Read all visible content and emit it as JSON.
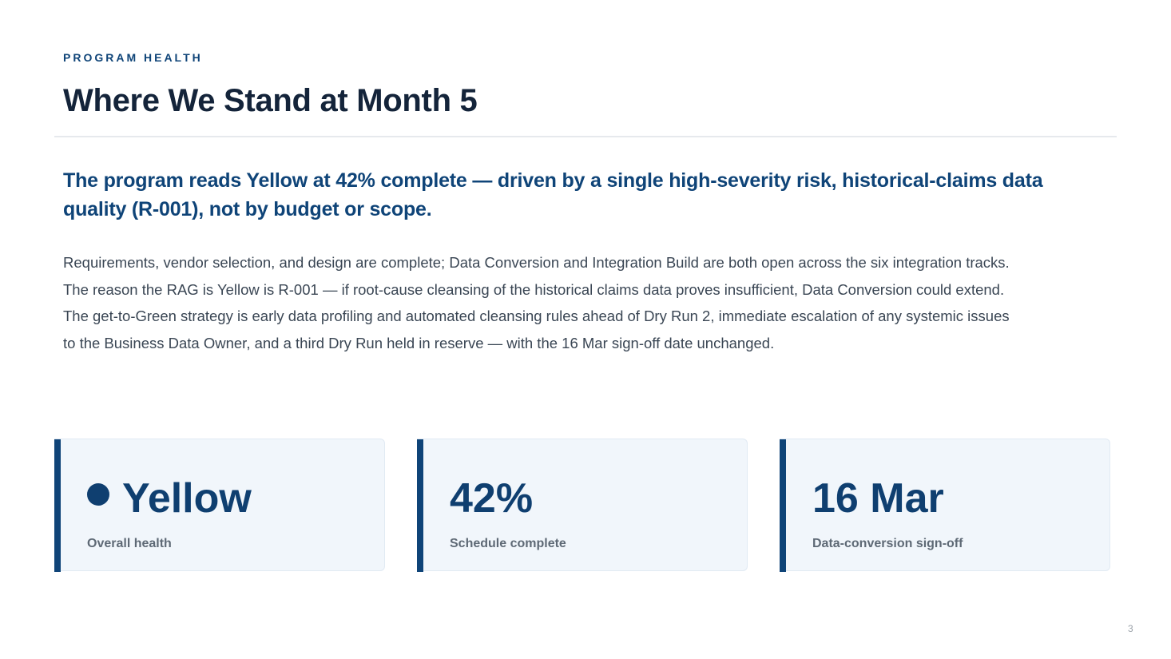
{
  "slide": {
    "eyebrow": "PROGRAM HEALTH",
    "title": "Where We Stand at Month 5",
    "headline": "The program reads Yellow at 42% complete — driven by a single high-severity risk, historical-claims data quality (R-001), not by budget or scope.",
    "body_lines": [
      "Requirements, vendor selection, and design are complete; Data Conversion and Integration Build are both open across the six integration tracks.",
      "The reason the RAG is Yellow is R-001 — if root-cause cleansing of the historical claims data proves insufficient, Data Conversion could extend.",
      "The get-to-Green strategy is early data profiling and automated cleansing rules ahead of Dry Run 2, immediate escalation of any systemic issues",
      "to the Business Data Owner, and a third Dry Run held in reserve — with the 16 Mar sign-off date unchanged."
    ],
    "page_number": "3"
  },
  "cards": [
    {
      "value": "Yellow",
      "label": "Overall health",
      "icon": "status-dot-icon"
    },
    {
      "value": "42%",
      "label": "Schedule complete"
    },
    {
      "value": "16 Mar",
      "label": "Data-conversion sign-off"
    }
  ],
  "colors": {
    "accent": "#0f4478",
    "title": "#14243a",
    "card_bg": "#f1f6fb",
    "body_text": "#3a4654",
    "label_text": "#5e6975"
  }
}
